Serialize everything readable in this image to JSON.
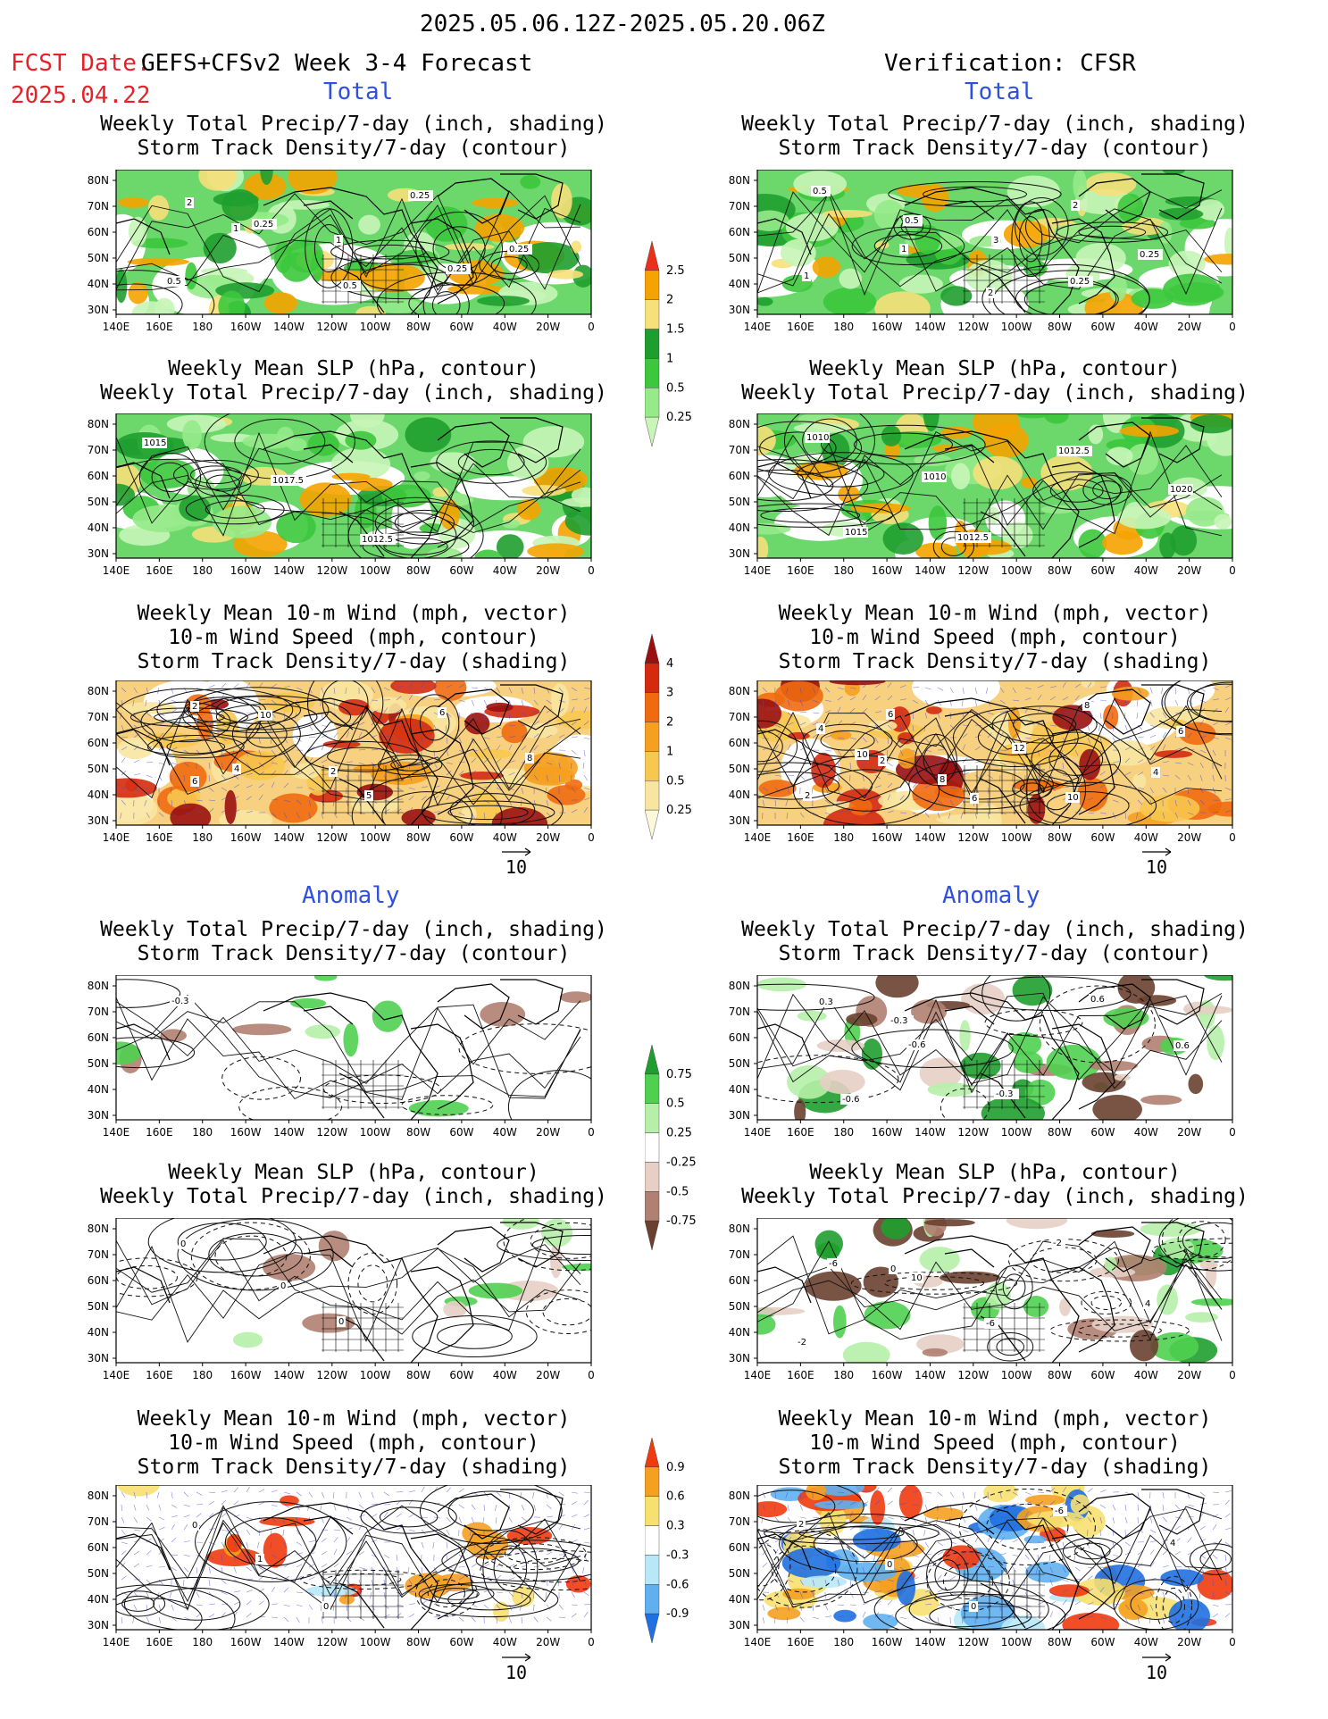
{
  "header": {
    "date_range": "2025.05.06.12Z-2025.05.20.06Z",
    "fcst_label": "FCST Date:",
    "fcst_date": "2025.04.22",
    "model": "GEFS+CFSv2 Week 3-4 Forecast",
    "verification": "Verification: CFSR"
  },
  "sections": {
    "total": "Total",
    "anomaly": "Anomaly"
  },
  "titles": {
    "precip_storm": [
      "Weekly Total Precip/7-day (inch, shading)",
      "Storm Track Density/7-day (contour)"
    ],
    "slp_precip": [
      "Weekly Mean SLP (hPa, contour)",
      "Weekly Total Precip/7-day (inch, shading)"
    ],
    "wind_storm": [
      "Weekly Mean 10-m Wind (mph, vector)",
      "10-m Wind Speed (mph, contour)",
      "Storm Track Density/7-day (shading)"
    ]
  },
  "axes": {
    "lon_ticks": [
      "140E",
      "160E",
      "180",
      "160W",
      "140W",
      "120W",
      "100W",
      "80W",
      "60W",
      "40W",
      "20W",
      "0"
    ],
    "lat_ticks": [
      "80N",
      "70N",
      "60N",
      "50N",
      "40N",
      "30N"
    ]
  },
  "wind_ref": "10",
  "colorbars": {
    "precip_total": {
      "labels": [
        "2.5",
        "2",
        "1.5",
        "1",
        "0.5",
        "0.25"
      ],
      "colors": [
        "#e8301a",
        "#f5a300",
        "#f7e07a",
        "#1f9e2f",
        "#3cc83c",
        "#96ea8a",
        "#c8f5b8"
      ]
    },
    "storm_total": {
      "labels": [
        "4",
        "3",
        "2",
        "1",
        "0.5",
        "0.25"
      ],
      "colors": [
        "#9a1010",
        "#d42a10",
        "#f06a10",
        "#f5a020",
        "#f7c850",
        "#f8e6a0",
        "#fdf8dc"
      ]
    },
    "precip_anom": {
      "labels": [
        "0.75",
        "0.5",
        "0.25",
        "-0.25",
        "-0.5",
        "-0.75"
      ],
      "colors": [
        "#1f9e2f",
        "#50d050",
        "#b6f0a8",
        "#ffffff",
        "#e6cfc4",
        "#b08070",
        "#6a4030"
      ]
    },
    "storm_anom": {
      "labels": [
        "0.9",
        "0.6",
        "0.3",
        "-0.3",
        "-0.6",
        "-0.9"
      ],
      "colors": [
        "#f03a10",
        "#f5a020",
        "#f7e070",
        "#ffffff",
        "#b8e8f8",
        "#60b0f0",
        "#1f70e0"
      ]
    }
  },
  "panel_labels": {
    "fcst_total_precip": [
      "2",
      "1",
      "0.5",
      "0.25",
      "0.25",
      "0.5",
      "0.25",
      "1",
      "0.25"
    ],
    "obs_total_precip": [
      "0.5",
      "1",
      "2",
      "2",
      "0.25",
      "1",
      "0.5",
      "3",
      "0.25"
    ],
    "fcst_total_slp": [
      "1015",
      "1017.5",
      "1012.5"
    ],
    "obs_total_slp": [
      "1010",
      "1010",
      "1012.5",
      "1012.5",
      "1020",
      "1015"
    ],
    "fcst_total_wind": [
      "2",
      "4",
      "5",
      "6",
      "8",
      "6",
      "10",
      "2"
    ],
    "obs_total_wind": [
      "4",
      "2",
      "6",
      "8",
      "4",
      "2",
      "6",
      "12",
      "10",
      "6",
      "10",
      "8"
    ],
    "fcst_anom_precip": [
      "-0.3"
    ],
    "obs_anom_precip": [
      "0.3",
      "-0.6",
      "-0.3",
      "0.6",
      "0.6",
      "-0.6",
      "-0.3"
    ],
    "fcst_anom_slp": [
      "0",
      "0",
      "0"
    ],
    "obs_anom_slp": [
      "-6",
      "10",
      "-6",
      "-2",
      "4",
      "-2",
      "0"
    ],
    "fcst_anom_wind": [
      "0",
      "1",
      "0"
    ],
    "obs_anom_wind": [
      "2",
      "0",
      "0",
      "-6",
      "4"
    ]
  }
}
